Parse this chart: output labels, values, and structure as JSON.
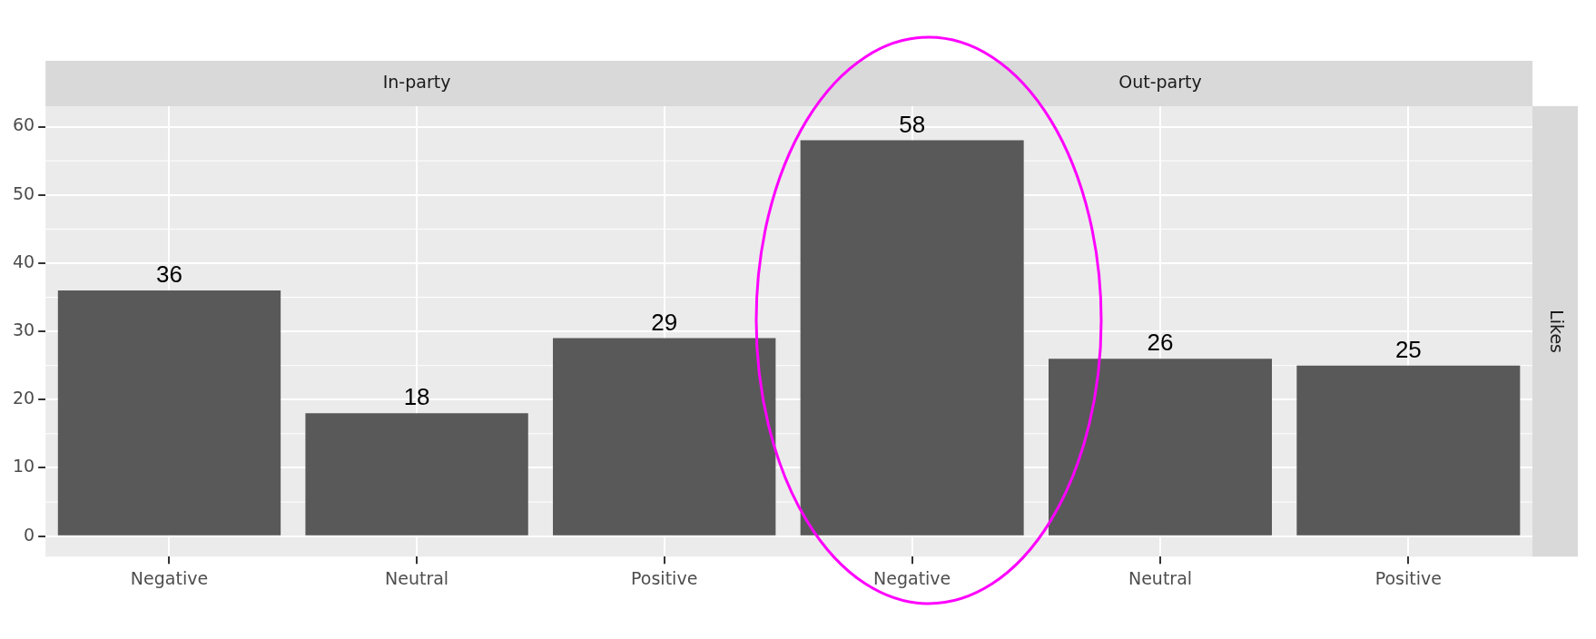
{
  "chart_data": [
    {
      "type": "bar",
      "title": "In-party",
      "categories": [
        "Negative",
        "Neutral",
        "Positive"
      ],
      "values": [
        36,
        18,
        29
      ],
      "color": "#595959",
      "ylim": [
        -3,
        63
      ],
      "yticks": [
        0,
        10,
        20,
        30,
        40,
        50,
        60
      ],
      "grid": true,
      "data_labels": true
    },
    {
      "type": "bar",
      "title": "Out-party",
      "categories": [
        "Negative",
        "Neutral",
        "Positive"
      ],
      "values": [
        58,
        26,
        25
      ],
      "color": "#595959",
      "ylim": [
        -3,
        63
      ],
      "yticks": [
        0,
        10,
        20,
        30,
        40,
        50,
        60
      ],
      "grid": true,
      "data_labels": true,
      "tick_labels": "x",
      "annotations": [
        "Likes"
      ]
    }
  ]
}
